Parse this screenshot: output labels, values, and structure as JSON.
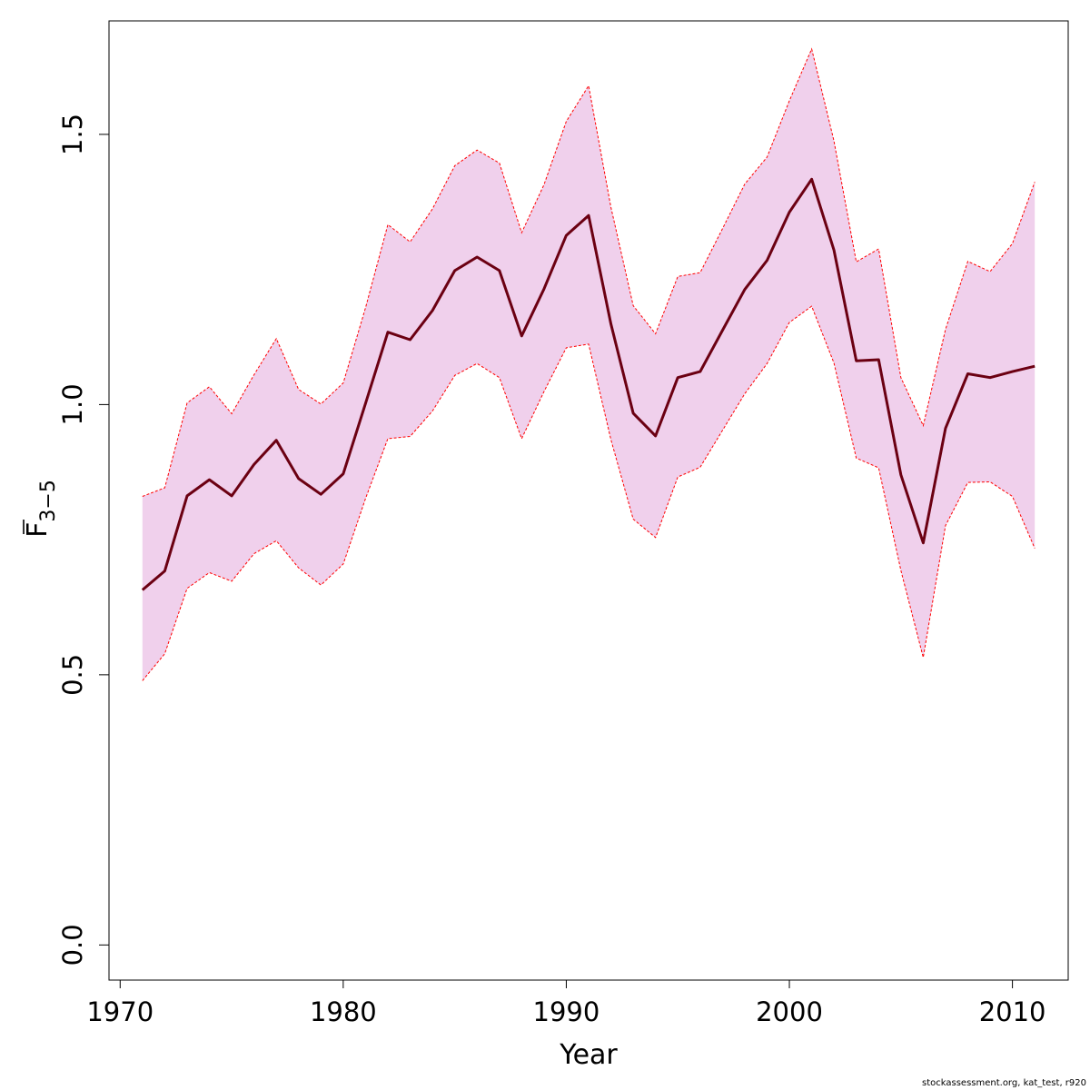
{
  "chart_data": {
    "type": "line",
    "title": "",
    "xlabel": "Year",
    "ylabel": {
      "main": "F",
      "subscript": "3−5",
      "overline": true
    },
    "xlim": [
      1969.5,
      2012.5
    ],
    "ylim": [
      -0.065,
      1.71
    ],
    "xticks": [
      1970,
      1980,
      1990,
      2000,
      2010
    ],
    "yticks": [
      0.0,
      0.5,
      1.0,
      1.5
    ],
    "ytick_labels": [
      "0.0",
      "0.5",
      "1.0",
      "1.5"
    ],
    "grid": false,
    "legend": "none",
    "x": [
      1971,
      1972,
      1973,
      1974,
      1975,
      1976,
      1977,
      1978,
      1979,
      1980,
      1981,
      1982,
      1983,
      1984,
      1985,
      1986,
      1987,
      1988,
      1989,
      1990,
      1991,
      1992,
      1993,
      1994,
      1995,
      1996,
      1997,
      1998,
      1999,
      2000,
      2001,
      2002,
      2003,
      2004,
      2005,
      2006,
      2007,
      2008,
      2009,
      2010,
      2011
    ],
    "series": [
      {
        "role": "estimate",
        "color": "#6b0012",
        "values": [
          0.657,
          0.692,
          0.831,
          0.861,
          0.831,
          0.889,
          0.934,
          0.863,
          0.834,
          0.872,
          1.002,
          1.134,
          1.12,
          1.174,
          1.248,
          1.273,
          1.248,
          1.127,
          1.214,
          1.313,
          1.35,
          1.149,
          0.984,
          0.942,
          1.05,
          1.061,
          1.137,
          1.213,
          1.267,
          1.356,
          1.417,
          1.286,
          1.081,
          1.083,
          0.87,
          0.744,
          0.956,
          1.057,
          1.05,
          1.061,
          1.071
        ]
      },
      {
        "role": "upper",
        "color": "#ff0000",
        "values": [
          0.83,
          0.846,
          1.003,
          1.033,
          0.983,
          1.055,
          1.122,
          1.028,
          1.001,
          1.04,
          1.179,
          1.333,
          1.301,
          1.362,
          1.442,
          1.471,
          1.447,
          1.318,
          1.407,
          1.524,
          1.59,
          1.365,
          1.183,
          1.131,
          1.237,
          1.244,
          1.325,
          1.408,
          1.458,
          1.562,
          1.658,
          1.488,
          1.264,
          1.288,
          1.05,
          0.961,
          1.139,
          1.265,
          1.246,
          1.298,
          1.412
        ]
      },
      {
        "role": "lower",
        "color": "#ff0000",
        "values": [
          0.489,
          0.539,
          0.66,
          0.689,
          0.673,
          0.724,
          0.748,
          0.698,
          0.666,
          0.705,
          0.826,
          0.937,
          0.941,
          0.988,
          1.054,
          1.076,
          1.05,
          0.937,
          1.024,
          1.105,
          1.112,
          0.935,
          0.788,
          0.754,
          0.866,
          0.884,
          0.952,
          1.02,
          1.076,
          1.152,
          1.182,
          1.077,
          0.901,
          0.883,
          0.693,
          0.532,
          0.776,
          0.856,
          0.857,
          0.83,
          0.734
        ]
      }
    ],
    "band_fill": "#f0d0ec"
  },
  "footer": "stockassessment.org, kat_test, r920"
}
